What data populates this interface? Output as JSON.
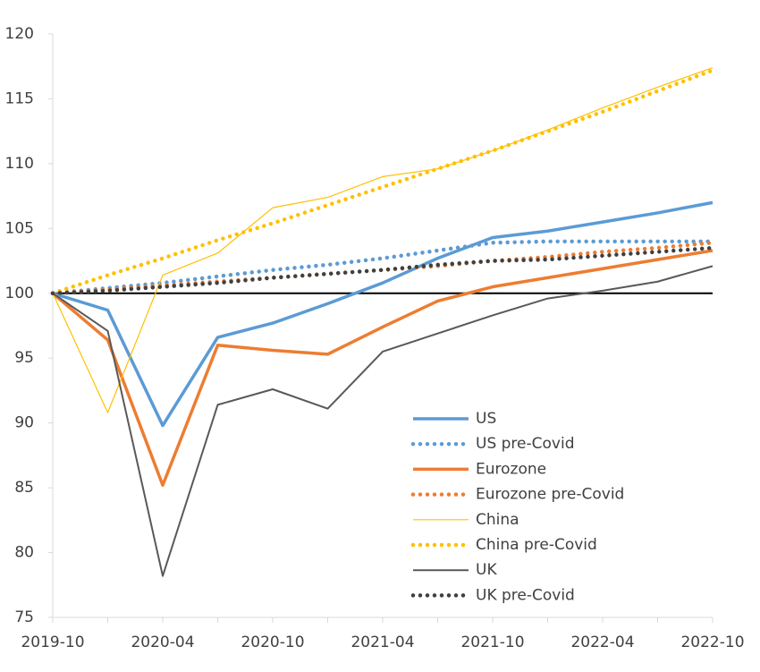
{
  "chart_data": {
    "type": "line",
    "categories": [
      "2019-10",
      null,
      "2020-04",
      null,
      "2020-10",
      null,
      "2021-04",
      null,
      "2021-10",
      null,
      "2022-04",
      null,
      "2022-10"
    ],
    "ylim": [
      75,
      120
    ],
    "yticks": [
      75,
      80,
      85,
      90,
      95,
      100,
      105,
      110,
      115,
      120
    ],
    "reference_line": 100,
    "legend": "lower-center",
    "series": [
      {
        "name": "US",
        "color": "#5b9bd5",
        "style": "solid",
        "values": [
          100,
          98.7,
          89.8,
          96.6,
          97.7,
          99.2,
          100.8,
          102.7,
          104.3,
          104.8,
          105.5,
          106.2,
          107.0
        ]
      },
      {
        "name": "US pre-Covid",
        "color": "#5b9bd5",
        "style": "dotted",
        "values": [
          100,
          100.4,
          100.8,
          101.3,
          101.8,
          102.2,
          102.7,
          103.3,
          103.9,
          104.0,
          104.0,
          104.0,
          104.0
        ]
      },
      {
        "name": "Eurozone",
        "color": "#ed7d31",
        "style": "solid",
        "values": [
          100,
          96.4,
          85.2,
          96.0,
          95.6,
          95.3,
          97.4,
          99.4,
          100.5,
          101.2,
          101.9,
          102.6,
          103.3
        ]
      },
      {
        "name": "Eurozone pre-Covid",
        "color": "#ed7d31",
        "style": "dotted",
        "values": [
          100,
          100.3,
          100.6,
          100.9,
          101.2,
          101.5,
          101.8,
          102.1,
          102.5,
          102.8,
          103.2,
          103.5,
          103.9
        ]
      },
      {
        "name": "China",
        "color": "#ffc000",
        "style": "thin",
        "values": [
          100,
          90.8,
          101.4,
          103.1,
          106.6,
          107.4,
          109.0,
          109.6,
          111.0,
          112.6,
          114.3,
          115.9,
          117.4
        ]
      },
      {
        "name": "China pre-Covid",
        "color": "#ffc000",
        "style": "dotted",
        "values": [
          100,
          101.4,
          102.7,
          104.1,
          105.4,
          106.8,
          108.2,
          109.6,
          111.0,
          112.5,
          114.0,
          115.6,
          117.2
        ]
      },
      {
        "name": "UK",
        "color": "#595959",
        "style": "medium",
        "values": [
          100,
          97.1,
          78.2,
          91.4,
          92.6,
          91.1,
          95.5,
          96.9,
          98.3,
          99.6,
          100.2,
          100.9,
          102.1
        ]
      },
      {
        "name": "UK pre-Covid",
        "color": "#404040",
        "style": "dotted",
        "values": [
          100,
          100.2,
          100.5,
          100.8,
          101.2,
          101.5,
          101.8,
          102.2,
          102.5,
          102.6,
          102.9,
          103.2,
          103.5
        ]
      }
    ]
  }
}
